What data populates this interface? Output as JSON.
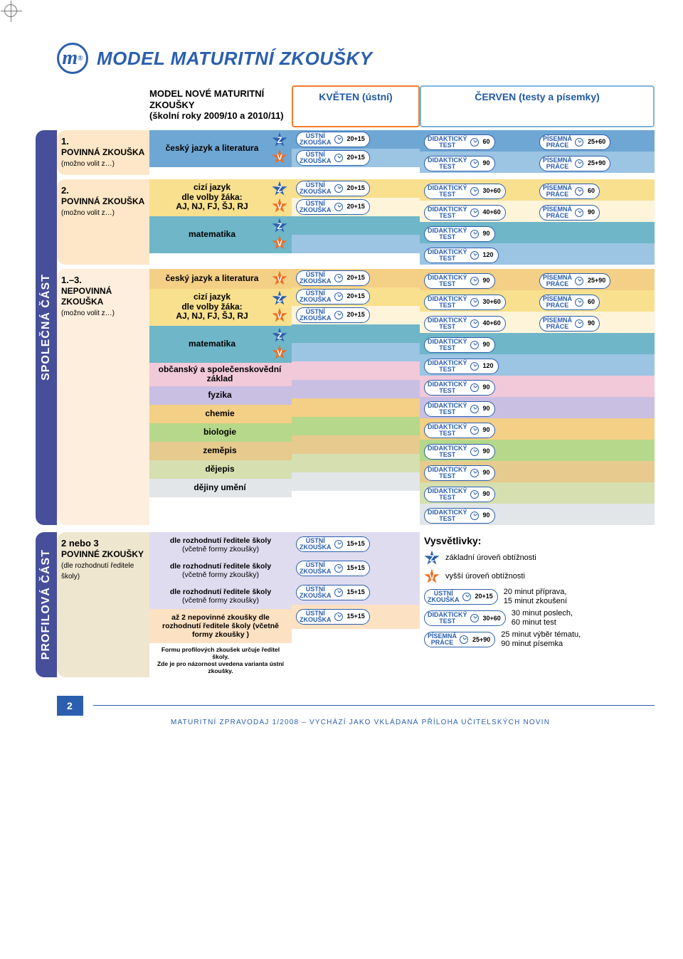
{
  "title": "MODEL MATURITNÍ ZKOUŠKY",
  "title_fontsize": 26,
  "logo_letter": "m",
  "logo_reg": "®",
  "subtitle_l1": "MODEL NOVÉ MATURITNÍ ZKOUŠKY",
  "subtitle_l2": "(školní roky 2009/10 a 2010/11)",
  "col_kveten": "KVĚTEN (ústní)",
  "col_cerven": "ČERVEN (testy a písemky)",
  "vtab_spolecna": "SPOLEČNÁ ČÁST",
  "vtab_profilova": "PROFILOVÁ ČÁST",
  "colors": {
    "brand_blue": "#2b5fae",
    "orange": "#f37b2a",
    "light_orange": "#fde7c8",
    "light_peach": "#fdeedd",
    "light_blue_hdr": "#7fb4e0",
    "band_blue1": "#6fa7d4",
    "band_blue2": "#9cc4e3",
    "band_yellow": "#f8e08e",
    "band_teal": "#6fb6c9",
    "band_cream": "#fef4d9",
    "band_pink": "#f1c9d9",
    "band_violet": "#c9bfe3",
    "band_amber": "#f4cf86",
    "band_green": "#b6d88a",
    "band_tan": "#e7ca8e",
    "band_sage": "#d5dfb0",
    "band_gray": "#e2e6e9",
    "prof_lilac": "#e0dcef",
    "prof_peach": "#fce1c3",
    "prof_beige": "#efe6d0",
    "vtab_purple": "#474f9b"
  },
  "strings": {
    "ustni_l1": "ÚSTNÍ",
    "ustni_l2": "ZKOUŠKA",
    "did_l1": "DIDAKTICKÝ",
    "did_l2": "TEST",
    "pis_l1": "PÍSEMNÁ",
    "pis_l2": "PRÁCE"
  },
  "sec1": {
    "label_num": "1.",
    "label_main": "POVINNÁ ZKOUŠKA",
    "label_note": "(možno volit z…)",
    "subject": "český jazyk a literatura",
    "rows": [
      {
        "bg": "#6fa7d4",
        "level": "Z",
        "u": "20+15",
        "d": "60",
        "p": "25+60"
      },
      {
        "bg": "#9cc4e3",
        "level": "V",
        "u": "20+15",
        "d": "90",
        "p": "25+90"
      }
    ]
  },
  "sec2": {
    "label_num": "2.",
    "label_main": "POVINNÁ ZKOUŠKA",
    "label_note": "(možno volit z…)",
    "sub_a": {
      "name": "cizí jazyk",
      "note": "dle volby žáka:\nAJ, NJ, FJ, ŠJ, RJ",
      "rows": [
        {
          "bg": "#f8e08e",
          "level": "Z",
          "u": "20+15",
          "d": "30+60",
          "p": "60"
        },
        {
          "bg": "#fef4d9",
          "level": "V",
          "u": "20+15",
          "d": "40+60",
          "p": "90"
        }
      ]
    },
    "sub_b": {
      "name": "matematika",
      "rows": [
        {
          "bg": "#6fb6c9",
          "level": "Z",
          "d": "90"
        },
        {
          "bg": "#9cc4e3",
          "level": "V",
          "d": "120"
        }
      ]
    }
  },
  "sec3": {
    "label_num": "1.–3.",
    "label_main": "NEPOVINNÁ ZKOUŠKA",
    "label_note": "(možno volit z…)",
    "blocks": [
      {
        "name": "český jazyk a literatura",
        "rows": [
          {
            "bg": "#f4cf86",
            "level": "V",
            "u": "20+15",
            "d": "90",
            "p": "25+90"
          }
        ]
      },
      {
        "name": "cizí jazyk",
        "note": "dle volby žáka:\nAJ, NJ, FJ, ŠJ, RJ",
        "rows": [
          {
            "bg": "#f8e08e",
            "level": "Z",
            "u": "20+15",
            "d": "30+60",
            "p": "60"
          },
          {
            "bg": "#fef4d9",
            "level": "V",
            "u": "20+15",
            "d": "40+60",
            "p": "90"
          }
        ]
      },
      {
        "name": "matematika",
        "rows": [
          {
            "bg": "#6fb6c9",
            "level": "Z",
            "d": "90"
          },
          {
            "bg": "#9cc4e3",
            "level": "V",
            "d": "120"
          }
        ]
      },
      {
        "name": "občanský a společenskovědní základ",
        "rows": [
          {
            "bg": "#f1c9d9",
            "d": "90"
          }
        ]
      },
      {
        "name": "fyzika",
        "rows": [
          {
            "bg": "#c9bfe3",
            "d": "90"
          }
        ]
      },
      {
        "name": "chemie",
        "rows": [
          {
            "bg": "#f4cf86",
            "d": "90"
          }
        ]
      },
      {
        "name": "biologie",
        "rows": [
          {
            "bg": "#b6d88a",
            "d": "90"
          }
        ]
      },
      {
        "name": "zeměpis",
        "rows": [
          {
            "bg": "#e7ca8e",
            "d": "90"
          }
        ]
      },
      {
        "name": "dějepis",
        "rows": [
          {
            "bg": "#d5dfb0",
            "d": "90"
          }
        ]
      },
      {
        "name": "dějiny umění",
        "rows": [
          {
            "bg": "#e2e6e9",
            "d": "90"
          }
        ]
      }
    ]
  },
  "profile": {
    "left_l1": "2 nebo 3",
    "left_l2": "POVINNÉ ZKOUŠKY",
    "left_note": "(dle rozhodnutí ředitele školy)",
    "desc_main": "dle rozhodnutí ředitele školy",
    "desc_sub": "(včetně formy zkoušky)",
    "opt_line": "až 2 nepovinné zkoušky dle rozhodnutí ředitele školy  (včetně formy zkoušky )",
    "foot1": "Formu profilových zkoušek určuje ředitel školy.",
    "foot2": "Zde je pro názornost uvedena varianta ústní zkoušky.",
    "u_rows": [
      {
        "bg": "#e0dcef",
        "u": "15+15"
      },
      {
        "bg": "#e0dcef",
        "u": "15+15"
      },
      {
        "bg": "#e0dcef",
        "u": "15+15"
      },
      {
        "bg": "#fce1c3",
        "u": "15+15"
      }
    ]
  },
  "legend": {
    "title": "Vysvětlivky:",
    "z": "základní úroveň obtížnosti",
    "v": "vyšší úroveň obtížnosti",
    "u_sample_dur": "20+15",
    "u_text": "20 minut příprava,\n15 minut zkoušení",
    "d_sample_dur": "30+60",
    "d_text": "30 minut poslech,\n60 minut test",
    "p_sample_dur": "25+90",
    "p_text": "25 minut výběr tématu,\n90 minut písemka"
  },
  "footer": {
    "page": "2",
    "text": "MATURITNÍ ZPRAVODAJ 1/2008 – VYCHÁZÍ JAKO VKLÁDANÁ PŘÍLOHA UČITELSKÝCH NOVIN"
  }
}
